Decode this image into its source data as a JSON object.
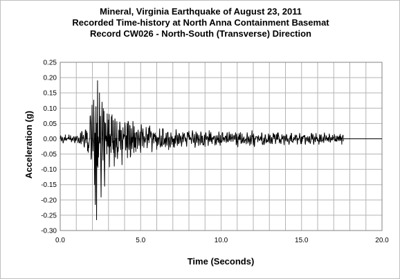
{
  "chart_data": {
    "type": "line",
    "title": [
      "Mineral, Virginia Earthquake of August 23, 2011",
      "Recorded Time-history at North Anna Containment Basemat",
      "Record CW026 - North-South (Transverse) Direction"
    ],
    "xlabel": "Time (Seconds)",
    "ylabel": "Acceleration (g)",
    "xlim": [
      0,
      20
    ],
    "ylim": [
      -0.3,
      0.25
    ],
    "x_major_step": 5,
    "x_minor_step": 1,
    "y_step": 0.05,
    "x_tick_labels": [
      "0.0",
      "5.0",
      "10.0",
      "15.0",
      "20.0"
    ],
    "y_tick_labels": [
      "0.25",
      "0.20",
      "0.15",
      "0.10",
      "0.05",
      "0.00",
      "-0.05",
      "-0.10",
      "-0.15",
      "-0.20",
      "-0.25",
      "-0.30"
    ],
    "grid": true,
    "line_color": "#000000",
    "record_end": 17.6,
    "series": [
      {
        "envelope": [
          [
            0.0,
            0.01
          ],
          [
            0.8,
            0.012
          ],
          [
            1.2,
            0.015
          ],
          [
            1.6,
            0.03
          ],
          [
            1.8,
            0.06
          ],
          [
            2.0,
            0.09
          ],
          [
            2.2,
            0.12
          ],
          [
            2.3,
            0.17
          ],
          [
            2.45,
            0.14
          ],
          [
            2.6,
            0.12
          ],
          [
            2.8,
            0.09
          ],
          [
            3.0,
            0.07
          ],
          [
            3.5,
            0.06
          ],
          [
            4.0,
            0.055
          ],
          [
            5.0,
            0.04
          ],
          [
            6.0,
            0.03
          ],
          [
            7.0,
            0.025
          ],
          [
            8.0,
            0.022
          ],
          [
            10.0,
            0.02
          ],
          [
            12.0,
            0.018
          ],
          [
            14.0,
            0.016
          ],
          [
            16.0,
            0.014
          ],
          [
            17.6,
            0.012
          ]
        ],
        "peaks": [
          [
            1.88,
            0.075
          ],
          [
            1.98,
            0.11
          ],
          [
            2.05,
            -0.04
          ],
          [
            2.1,
            0.07
          ],
          [
            2.14,
            -0.15
          ],
          [
            2.18,
            -0.215
          ],
          [
            2.22,
            0.105
          ],
          [
            2.26,
            -0.265
          ],
          [
            2.32,
            0.19
          ],
          [
            2.38,
            -0.06
          ],
          [
            2.45,
            0.15
          ],
          [
            2.52,
            -0.08
          ],
          [
            2.6,
            0.12
          ],
          [
            2.67,
            -0.07
          ],
          [
            2.72,
            0.09
          ],
          [
            2.76,
            -0.155
          ],
          [
            2.82,
            0.05
          ],
          [
            2.9,
            -0.05
          ],
          [
            3.05,
            0.08
          ],
          [
            3.3,
            0.06
          ],
          [
            3.45,
            -0.06
          ],
          [
            3.7,
            0.055
          ],
          [
            3.85,
            -0.085
          ],
          [
            4.15,
            0.05
          ],
          [
            4.35,
            -0.06
          ],
          [
            4.6,
            0.04
          ],
          [
            5.0,
            -0.045
          ],
          [
            5.5,
            0.035
          ],
          [
            6.0,
            -0.035
          ],
          [
            6.4,
            0.03
          ],
          [
            7.1,
            -0.028
          ],
          [
            8.0,
            0.025
          ],
          [
            9.0,
            -0.025
          ],
          [
            10.5,
            0.022
          ],
          [
            12.0,
            -0.02
          ],
          [
            13.5,
            0.018
          ],
          [
            15.0,
            -0.016
          ],
          [
            17.4,
            0.015
          ],
          [
            17.5,
            -0.018
          ],
          [
            17.58,
            0.012
          ]
        ]
      }
    ]
  }
}
